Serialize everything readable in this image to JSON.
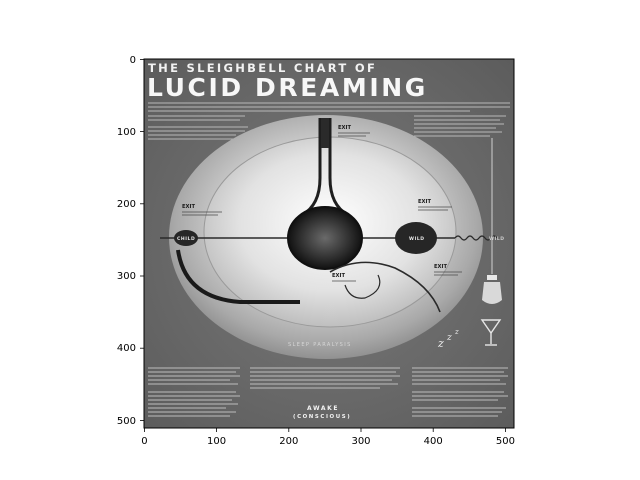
{
  "figure": {
    "x_ticks": [
      "0",
      "100",
      "200",
      "300",
      "400",
      "500"
    ],
    "y_ticks": [
      "0",
      "100",
      "200",
      "300",
      "400",
      "500"
    ]
  },
  "poster": {
    "title_line1": "THE SLEIGHBELL CHART OF",
    "title_line2": "LUCID DREAMING",
    "labels": {
      "child": "CHILD",
      "wild": "WILD",
      "wild_right": "WILD",
      "exit_left": "EXIT",
      "exit_top": "EXIT",
      "exit_right": "EXIT",
      "exit_bottom_right": "EXIT",
      "exit_center": "EXIT",
      "sleep_paralysis": "SLEEP PARALYSIS",
      "awake": "AWAKE",
      "conscious": "(CONSCIOUS)"
    }
  }
}
